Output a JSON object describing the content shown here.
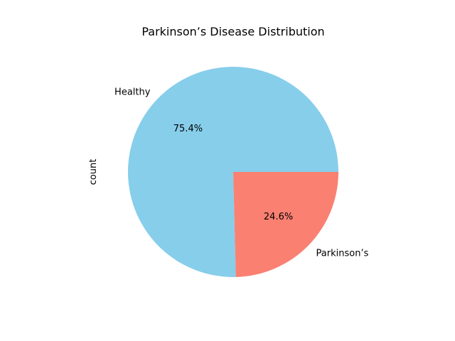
{
  "chart_data": {
    "type": "pie",
    "title": "Parkinson’s Disease Distribution",
    "ylabel": "count",
    "slices": [
      {
        "label": "Healthy",
        "percent_label": "75.4%",
        "value": 75.4,
        "color": "#87CEEB"
      },
      {
        "label": "Parkinson’s",
        "percent_label": "24.6%",
        "value": 24.6,
        "color": "#FA8072"
      }
    ],
    "start_angle_deg": 0,
    "direction": "counterclockwise",
    "legend": "none"
  }
}
